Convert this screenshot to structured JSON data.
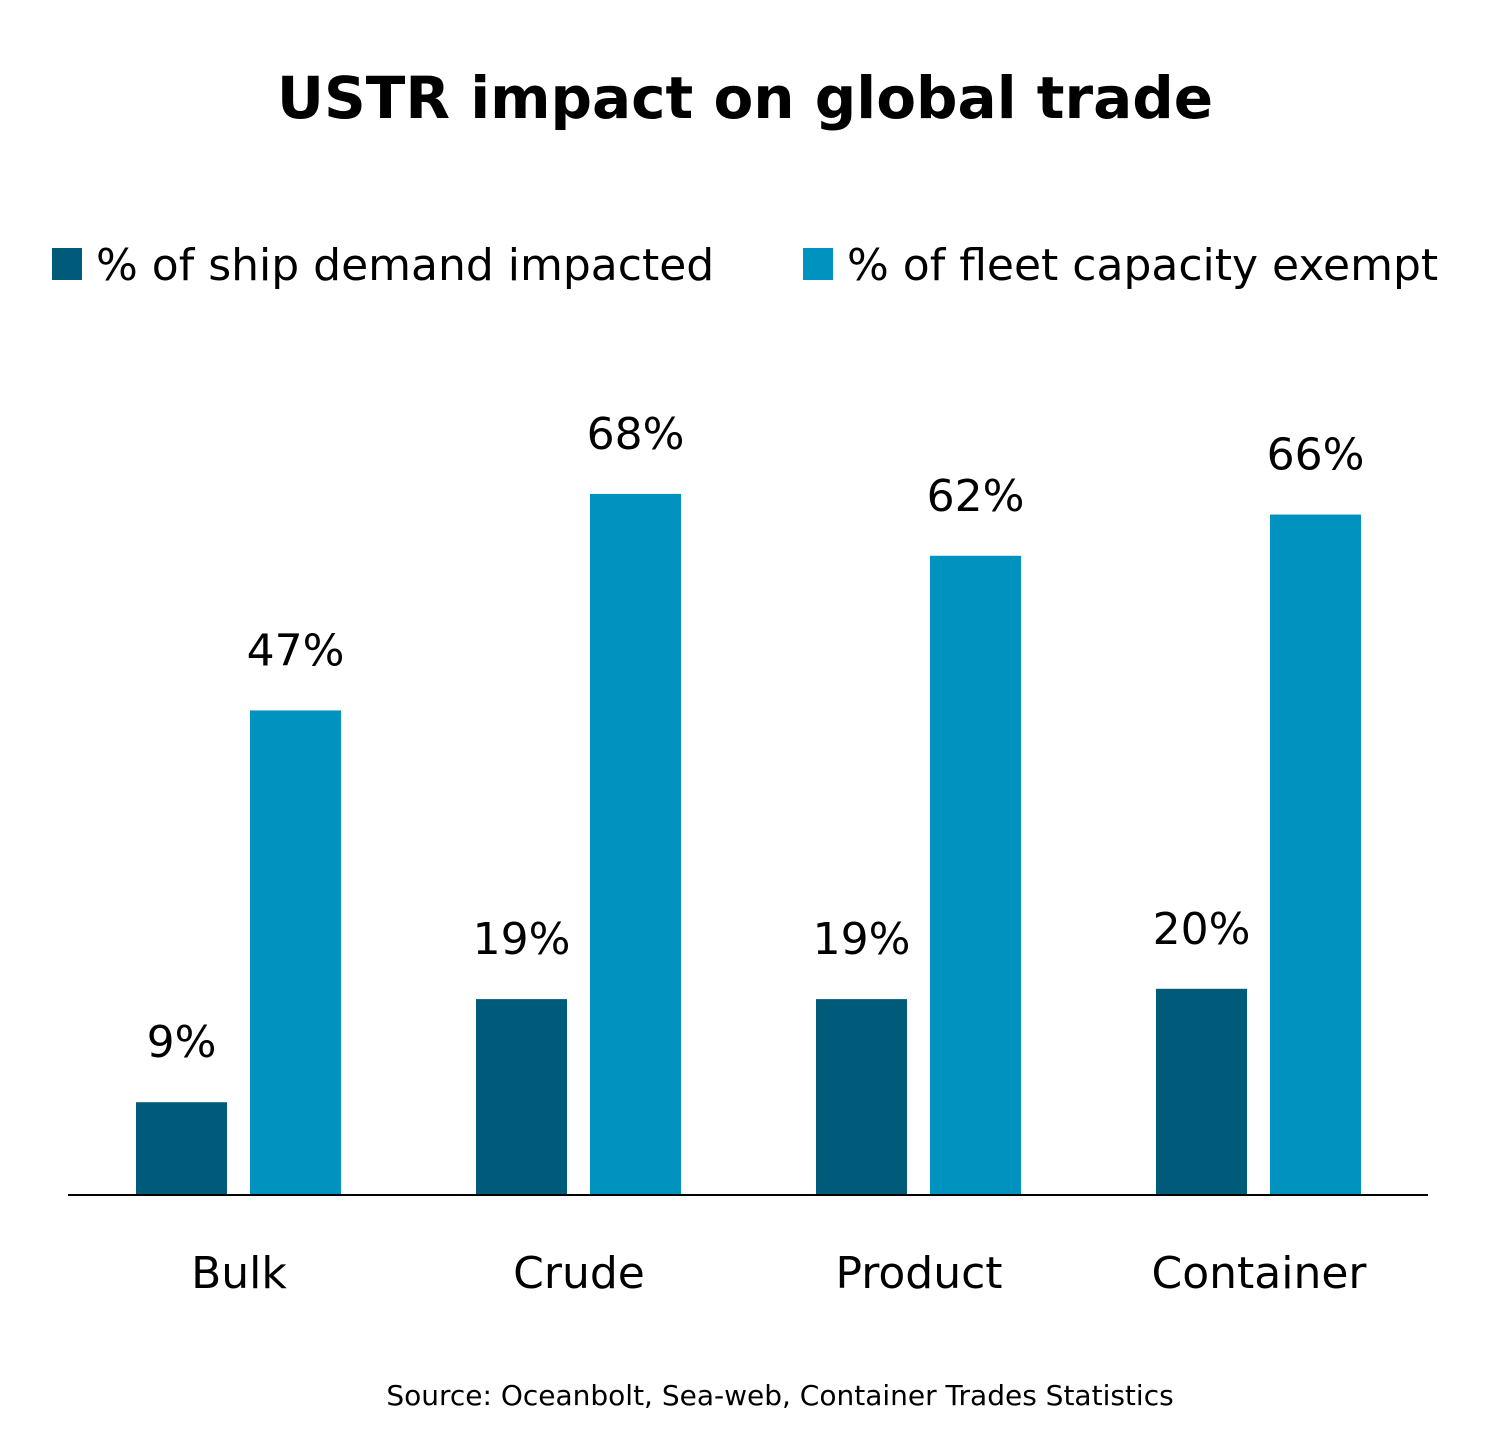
{
  "chart_data": {
    "type": "bar",
    "title": "USTR impact on global trade",
    "categories": [
      "Bulk",
      "Crude",
      "Product",
      "Container"
    ],
    "series": [
      {
        "name": "% of ship demand impacted",
        "values": [
          9,
          19,
          19,
          20
        ],
        "labels": [
          "9%",
          "19%",
          "19%",
          "20%"
        ],
        "color": "#005a7a"
      },
      {
        "name": "% of fleet capacity exempt",
        "values": [
          47,
          68,
          62,
          66
        ],
        "labels": [
          "47%",
          "68%",
          "62%",
          "66%"
        ],
        "color": "#0093bf"
      }
    ],
    "ylim": [
      0,
      100
    ],
    "grid": false,
    "legend_position": "top",
    "source": "Source: Oceanbolt, Sea-web, Container Trades Statistics"
  }
}
